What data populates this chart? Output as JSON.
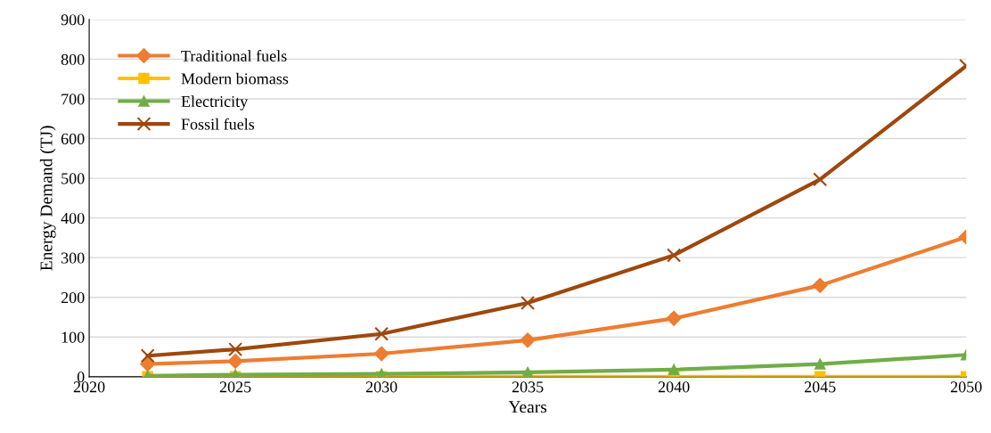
{
  "chart_data": {
    "type": "line",
    "xlabel": "Years",
    "ylabel": "Energy Demand (TJ)",
    "x": [
      2022,
      2025,
      2030,
      2035,
      2040,
      2045,
      2050
    ],
    "series": [
      {
        "name": "Traditional fuels",
        "color": "#ed7d31",
        "marker": "diamond",
        "values": [
          32,
          39,
          58,
          92,
          147,
          230,
          352
        ]
      },
      {
        "name": "Modern biomass",
        "color": "#ffc000",
        "marker": "square",
        "values": [
          0,
          0,
          0,
          0,
          0,
          0,
          0
        ]
      },
      {
        "name": "Electricity",
        "color": "#70ad47",
        "marker": "triangle",
        "values": [
          2,
          5,
          7,
          11,
          18,
          32,
          55
        ]
      },
      {
        "name": "Fossil fuels",
        "color": "#9e480e",
        "marker": "cross",
        "values": [
          53,
          69,
          108,
          186,
          306,
          497,
          783
        ]
      }
    ],
    "xlim": [
      2020,
      2050
    ],
    "xticks": [
      2020,
      2025,
      2030,
      2035,
      2040,
      2045,
      2050
    ],
    "ylim": [
      0,
      900
    ],
    "yticks": [
      0,
      100,
      200,
      300,
      400,
      500,
      600,
      700,
      800,
      900
    ],
    "grid": "y",
    "legend": "top left",
    "line_style": "solid"
  }
}
